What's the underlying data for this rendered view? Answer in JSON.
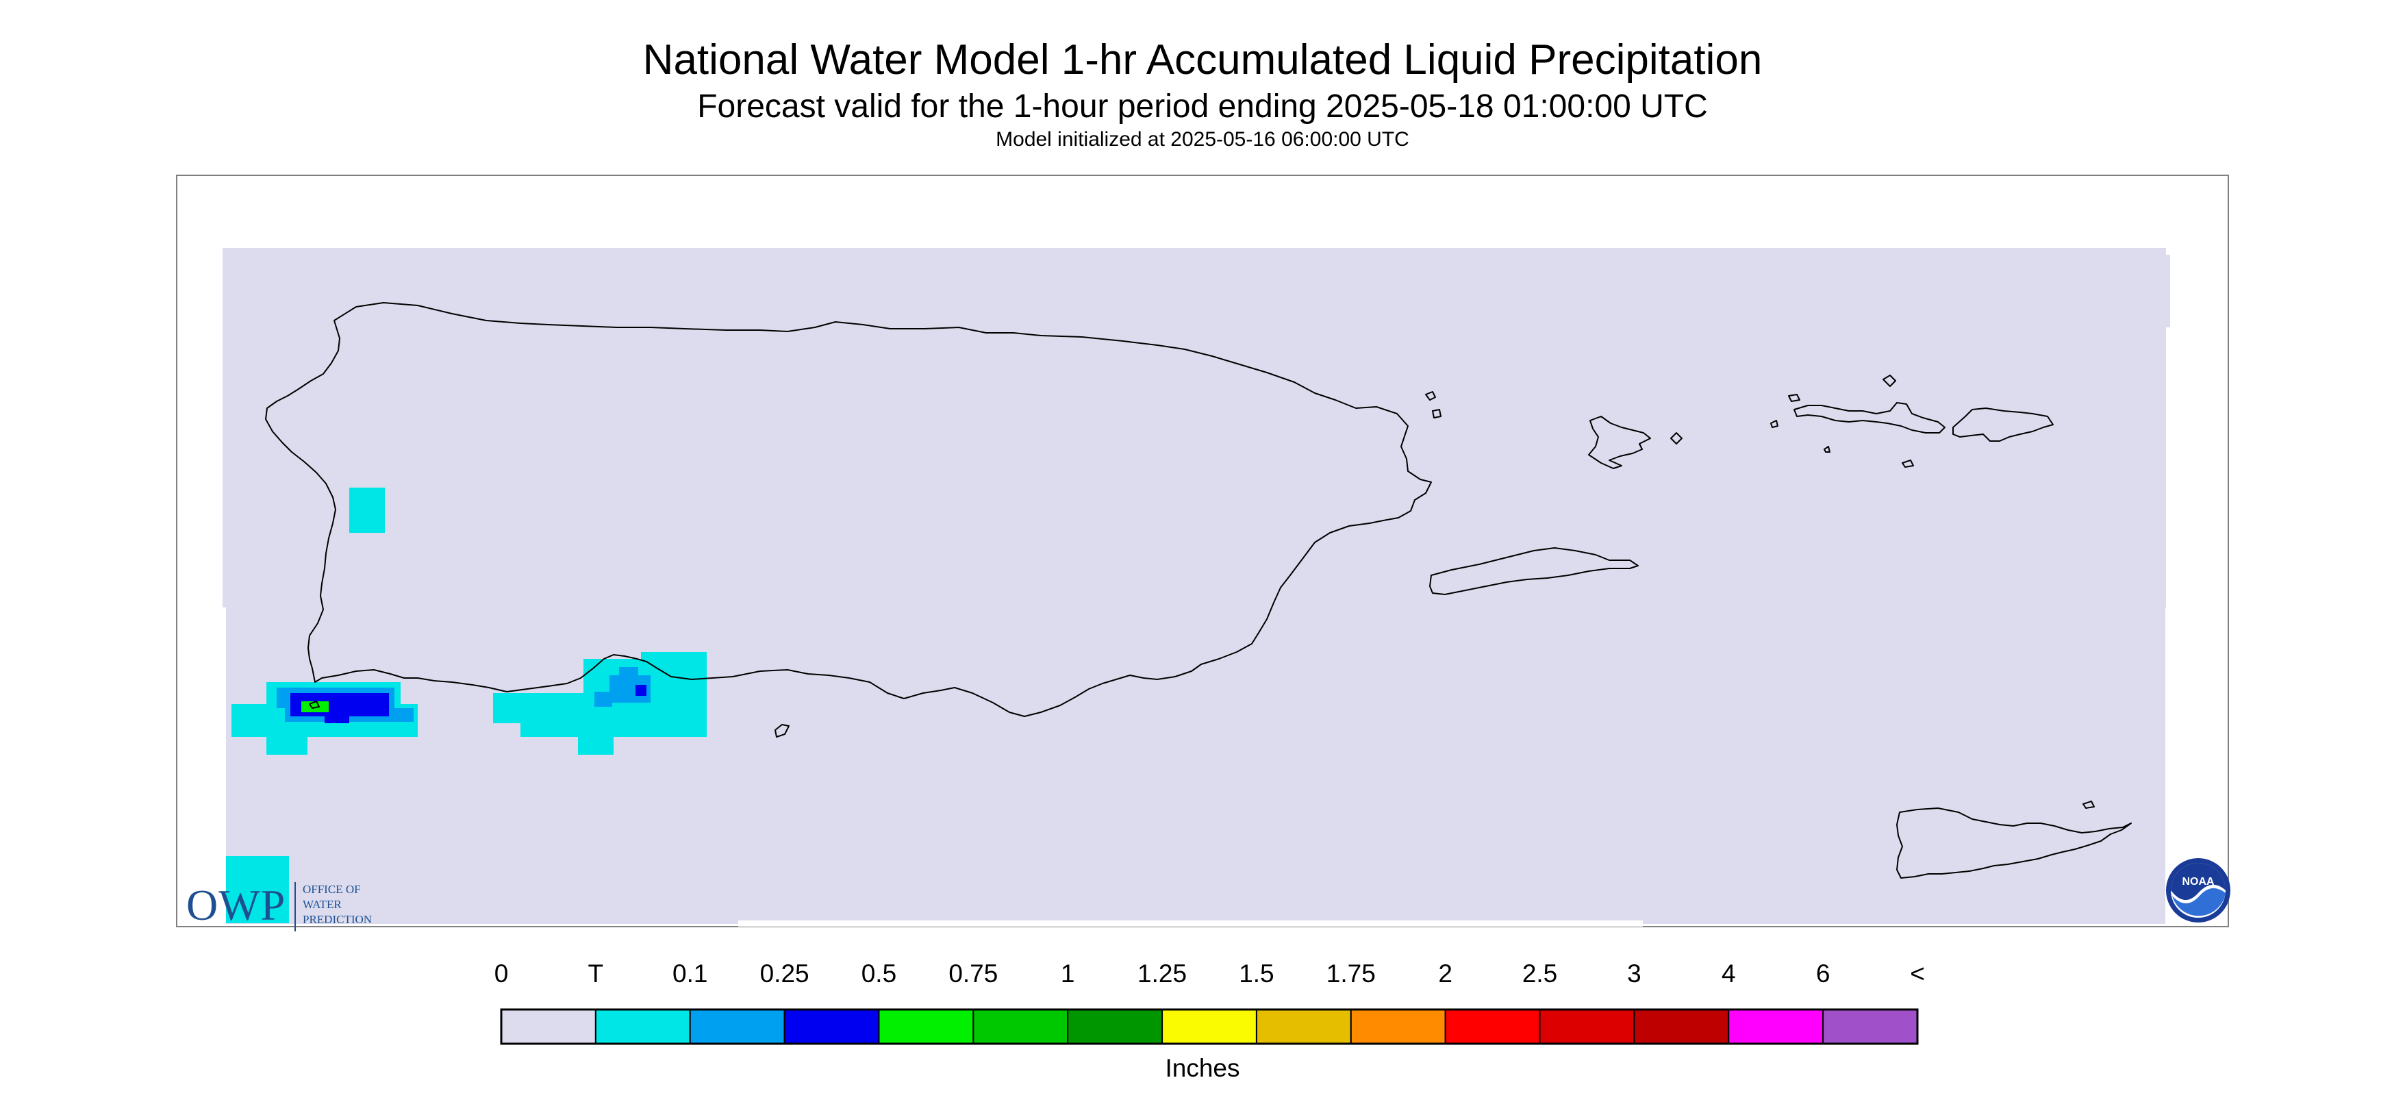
{
  "title": "National Water Model 1-hr Accumulated Liquid Precipitation",
  "subtitle": "Forecast valid for the 1-hour period ending 2025-05-18 01:00:00 UTC",
  "init_line": "Model initialized at 2025-05-16 06:00:00 UTC",
  "logos": {
    "owp_abbrev": "OWP",
    "owp_line1": "OFFICE OF",
    "owp_line2": "WATER",
    "owp_line3": "PREDICTION",
    "noaa_text": "NOAA"
  },
  "colorbar": {
    "units": "Inches",
    "labels": [
      "0",
      "T",
      "0.1",
      "0.25",
      "0.5",
      "0.75",
      "1",
      "1.25",
      "1.5",
      "1.75",
      "2",
      "2.5",
      "3",
      "4",
      "6",
      "<"
    ],
    "colors": [
      "#dcdcee",
      "#00e6e6",
      "#00a0f0",
      "#0000f0",
      "#00f000",
      "#00c800",
      "#009600",
      "#fafa00",
      "#e6be00",
      "#ff8c00",
      "#ff0000",
      "#dc0000",
      "#be0000",
      "#ff00ff",
      "#a050c8"
    ]
  },
  "colors": {
    "background_no_precip": "#dcdcee",
    "trace": "#00e6e6",
    "light": "#00a0f0",
    "moderate": "#0000f0",
    "heavy": "#00f000",
    "coastline": "#000000",
    "frame": "#808080",
    "owp_blue": "#1d4f91",
    "noaa_blue": "#1a3b97"
  }
}
